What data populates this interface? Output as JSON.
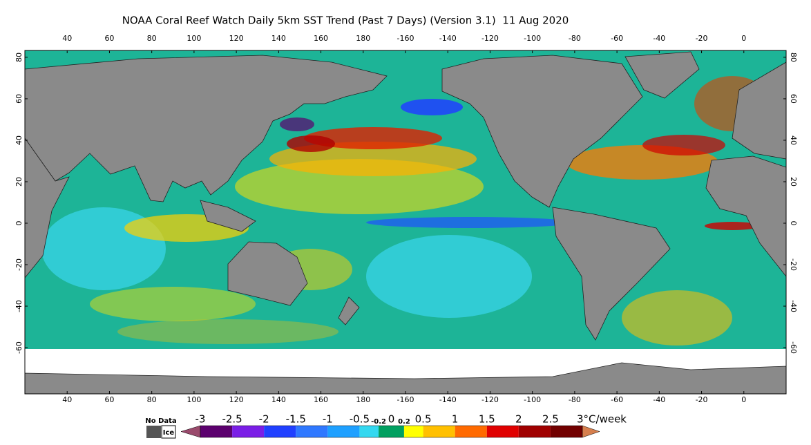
{
  "title": "NOAA Coral Reef Watch Daily 5km SST Trend (Past 7 Days) (Version 3.1)  11 Aug 2020",
  "map": {
    "longitude_ticks": [
      40,
      60,
      80,
      100,
      120,
      140,
      160,
      180,
      -160,
      -140,
      -120,
      -100,
      -80,
      -60,
      -40,
      -20,
      0
    ],
    "latitude_ticks": [
      80,
      60,
      40,
      20,
      0,
      -20,
      -40,
      -60
    ],
    "lon_range": [
      20,
      380
    ],
    "lat_range": [
      83.3,
      -82.3
    ]
  },
  "legend": {
    "no_data": "No Data",
    "ice": "Ice",
    "no_data_color": "#555555",
    "ice_color": "#ffffff",
    "ticks": [
      -3,
      -2.5,
      -2,
      -1.5,
      -1,
      -0.5,
      -0.2,
      0,
      0.2,
      0.5,
      1,
      1.5,
      2,
      {
        "value": 2.5,
        "label": "2.5"
      },
      {
        "value": 3,
        "label": "3°C/week"
      }
    ],
    "bounds": [
      -3,
      -2.5,
      -2,
      -1.5,
      -1,
      -0.5,
      -0.2,
      0.2,
      0.5,
      1,
      1.5,
      2,
      2.5,
      3
    ],
    "colors": [
      "#5c006e",
      "#7a1ee6",
      "#2040ff",
      "#2f78ff",
      "#1ea0ff",
      "#33d8f0",
      "#00a060",
      "#ffff00",
      "#ffc000",
      "#ff6a00",
      "#e00000",
      "#a00000",
      "#720000"
    ],
    "under_color": "#9a4a6c",
    "over_color": "#d67f4e",
    "xlim": [
      -3,
      3
    ]
  }
}
